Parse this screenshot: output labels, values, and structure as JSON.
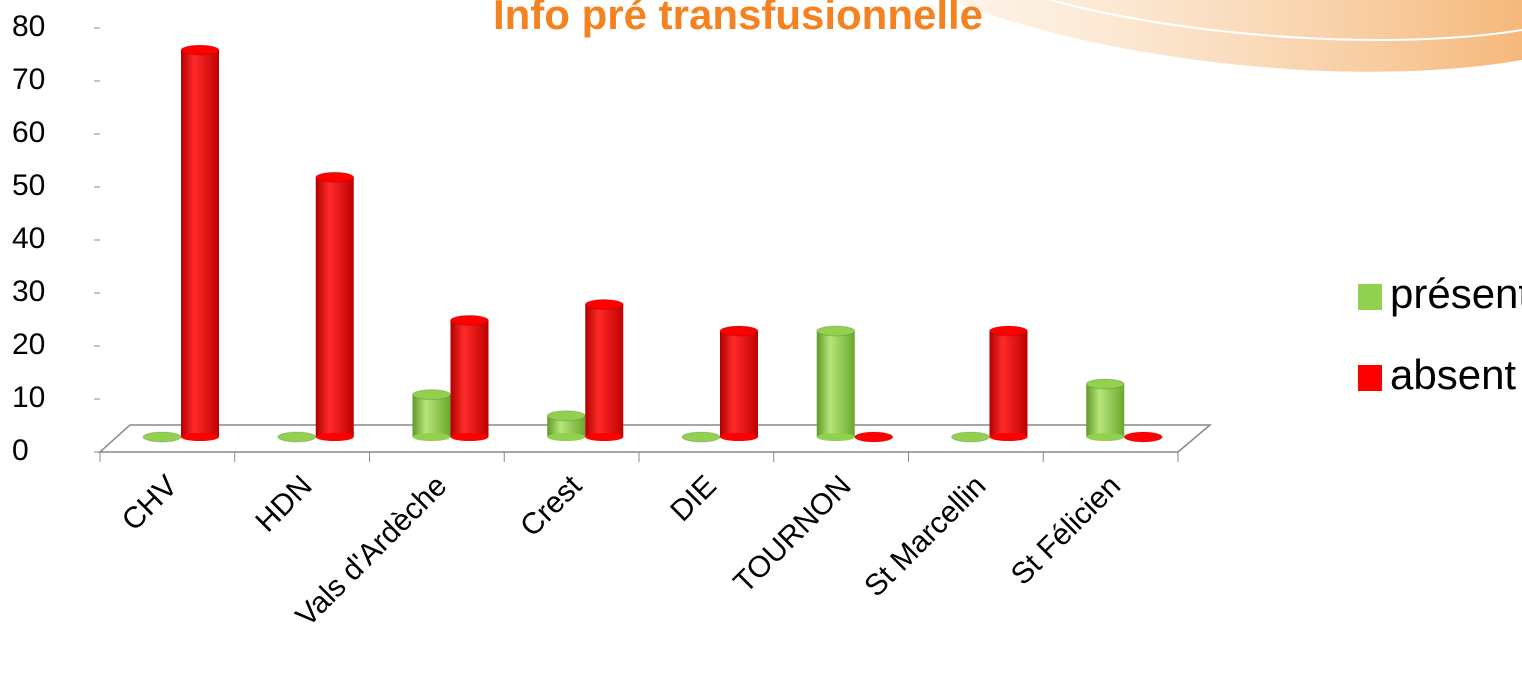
{
  "chart_data": {
    "type": "bar",
    "title": "Info pré transfusionnelle",
    "categories": [
      "CHV",
      "HDN",
      "Vals d'Ardèche",
      "Crest",
      "DIE",
      "TOURNON",
      "St Marcellin",
      "St Félicien"
    ],
    "series": [
      {
        "name": "présent",
        "color": "#92d050",
        "values": [
          0,
          0,
          8,
          4,
          0,
          20,
          0,
          10
        ]
      },
      {
        "name": "absent",
        "color": "#ff0000",
        "values": [
          73,
          49,
          22,
          25,
          20,
          0,
          20,
          0
        ]
      }
    ],
    "ylim": [
      0,
      80
    ],
    "yticks": [
      0,
      10,
      20,
      30,
      40,
      50,
      60,
      70,
      80
    ],
    "legend": "right"
  }
}
